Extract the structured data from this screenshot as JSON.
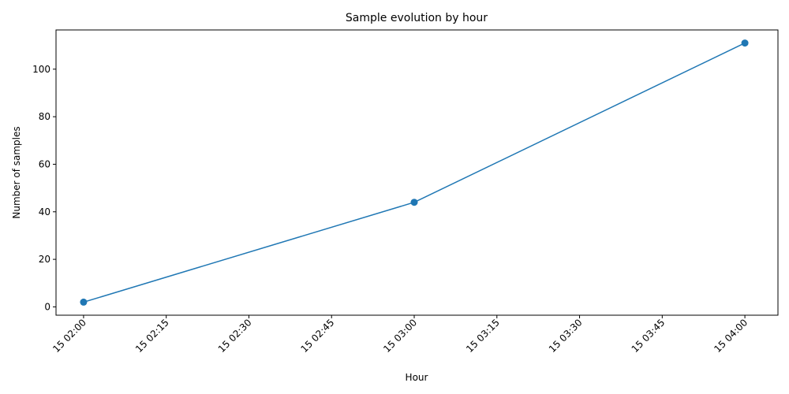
{
  "chart_data": {
    "type": "line",
    "title": "Sample evolution by hour",
    "xlabel": "Hour",
    "ylabel": "Number of samples",
    "x_ticks": [
      "15 02:00",
      "15 02:15",
      "15 02:30",
      "15 02:45",
      "15 03:00",
      "15 03:15",
      "15 03:30",
      "15 03:45",
      "15 04:00"
    ],
    "y_ticks": [
      0,
      20,
      40,
      60,
      80,
      100
    ],
    "xlim": [
      "15 01:55",
      "15 04:06"
    ],
    "ylim": [
      -3.5,
      116.5
    ],
    "grid": false,
    "series": [
      {
        "x": [
          "15 02:00",
          "15 03:00",
          "15 04:00"
        ],
        "values": [
          2,
          44,
          111
        ],
        "color": "#1f77b4",
        "marker": "circle"
      }
    ]
  }
}
